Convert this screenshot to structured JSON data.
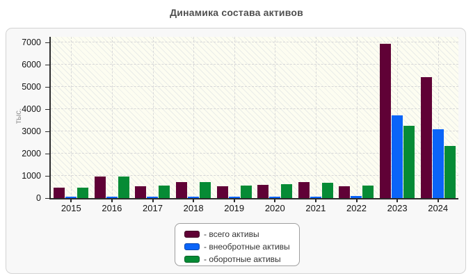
{
  "title": "Динамика состава активов",
  "chart_data": {
    "type": "bar",
    "title": "Динамика состава активов",
    "xlabel": "",
    "ylabel": "тыс.",
    "ylim": [
      0,
      7000
    ],
    "ytick_step": 1000,
    "grid": true,
    "legend_position": "bottom",
    "categories": [
      "2015",
      "2016",
      "2017",
      "2018",
      "2019",
      "2020",
      "2021",
      "2022",
      "2023",
      "2024"
    ],
    "series": [
      {
        "name": "всего активы",
        "color": "#600136",
        "border_color": "#3d0023",
        "values": [
          470,
          970,
          540,
          710,
          545,
          605,
          710,
          540,
          6940,
          5440
        ]
      },
      {
        "name": "внеобротные активы",
        "color": "#0a64f8",
        "border_color": "#0747b0",
        "values": [
          75,
          75,
          75,
          75,
          75,
          75,
          75,
          85,
          3730,
          3100
        ]
      },
      {
        "name": "оборотные активы",
        "color": "#068b35",
        "border_color": "#045f24",
        "values": [
          460,
          975,
          550,
          720,
          565,
          640,
          690,
          555,
          3240,
          2330
        ]
      }
    ]
  },
  "legend": {
    "items": [
      {
        "label": "- всего активы",
        "color": "#600136",
        "border_color": "#3d0023"
      },
      {
        "label": "- внеобротные активы",
        "color": "#0a64f8",
        "border_color": "#0747b0"
      },
      {
        "label": "- оборотные активы",
        "color": "#068b35",
        "border_color": "#045f24"
      }
    ]
  },
  "axis": {
    "y_ticks": [
      "0",
      "1000",
      "2000",
      "3000",
      "4000",
      "5000",
      "6000",
      "7000"
    ]
  },
  "colors": {
    "panel_background": "#f8f8f8",
    "panel_border": "#d3d3d3",
    "plot_background": "#fdfdf1",
    "gridline": "#d7d7d7",
    "axis_line": "#2b2b2b",
    "title_text": "#4f4f4f",
    "tick_text": "#141414",
    "ylabel_text": "#8f8f8f",
    "legend_border": "#9e9e9e",
    "legend_background": "#ffffff"
  }
}
